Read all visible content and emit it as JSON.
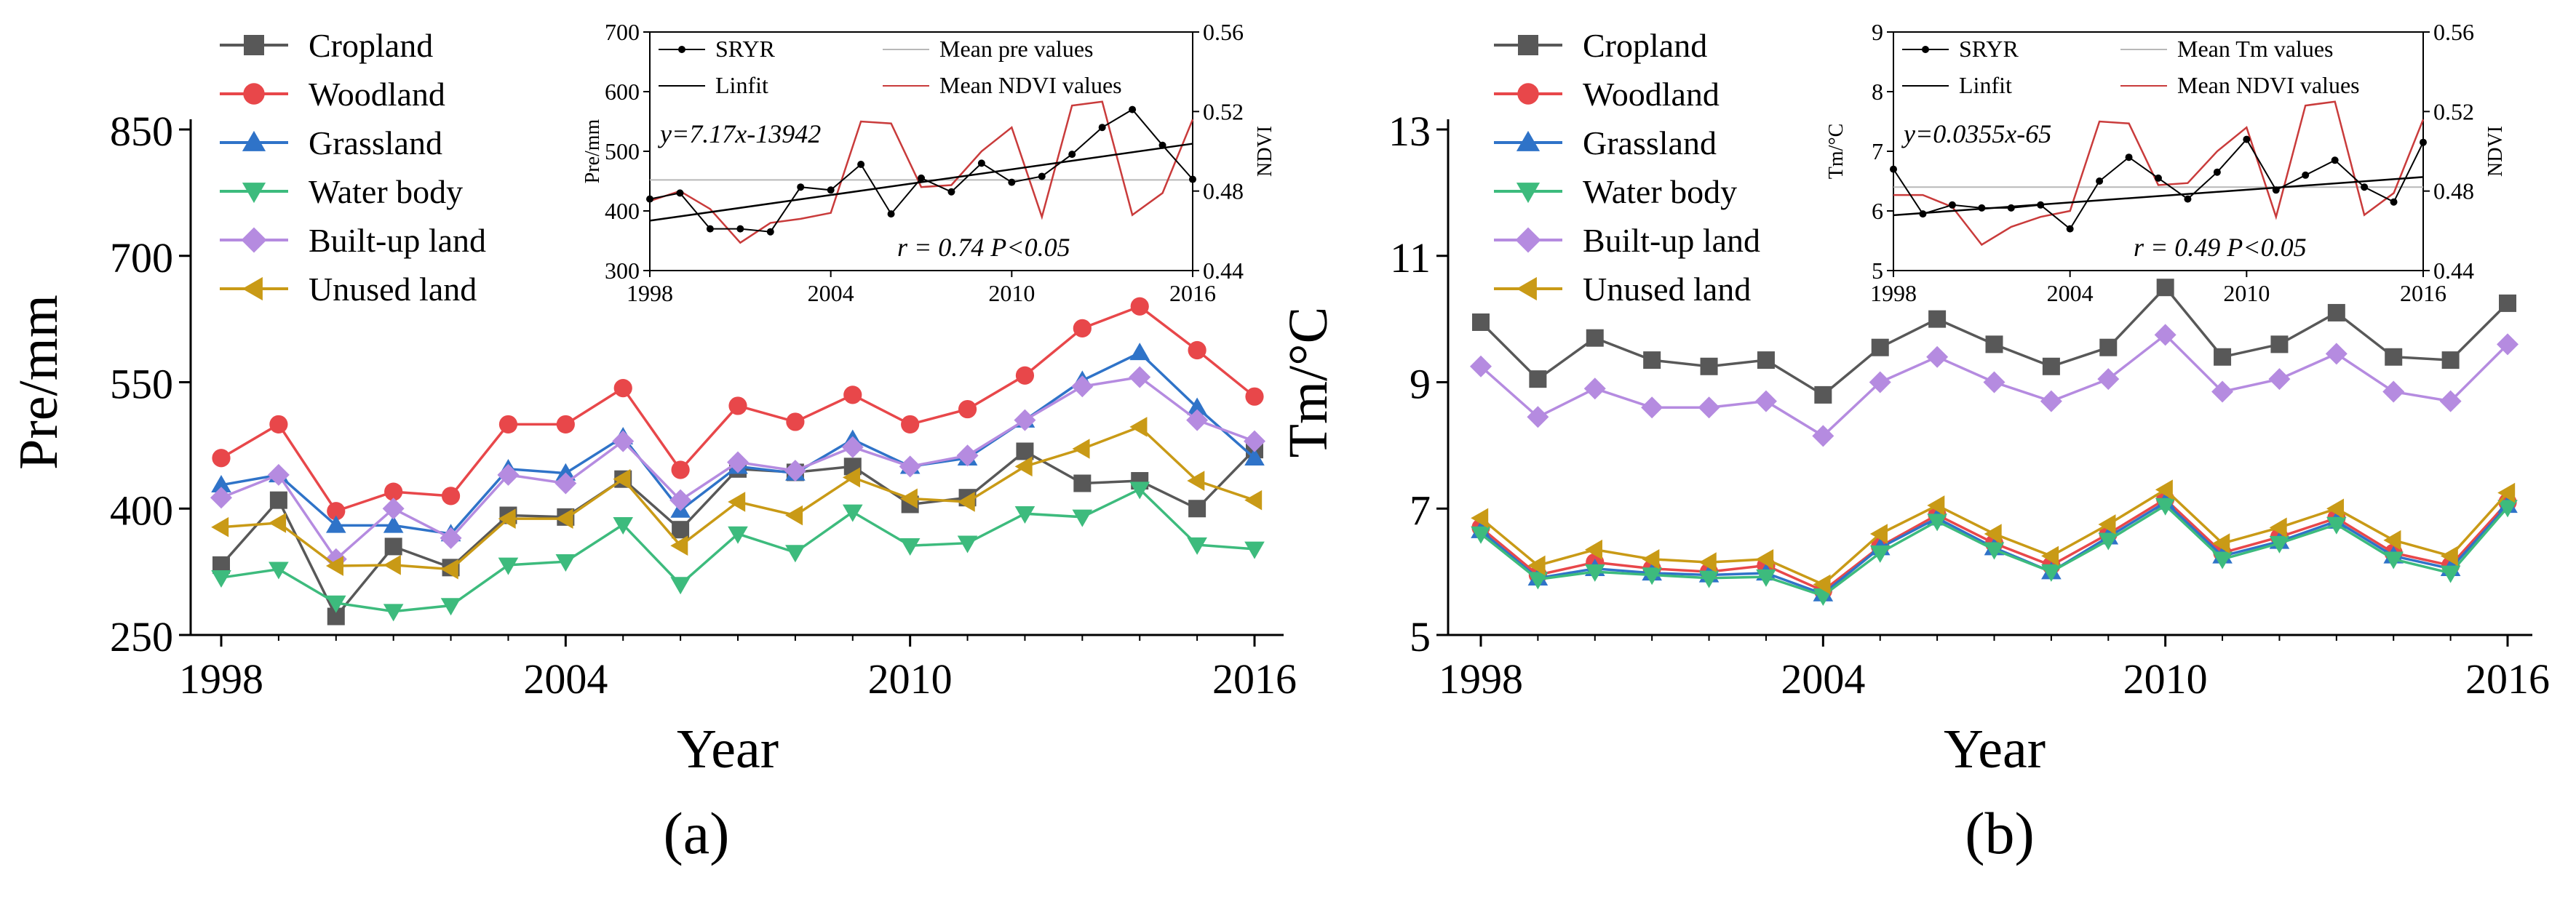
{
  "figure": {
    "panel_a_caption": "(a)",
    "panel_b_caption": "(b)"
  },
  "chart_data": [
    {
      "id": "a_main",
      "type": "line",
      "ylabel": "Pre/mm",
      "xlabel": "Year",
      "x": [
        1998,
        1999,
        2000,
        2001,
        2002,
        2003,
        2004,
        2005,
        2006,
        2007,
        2008,
        2009,
        2010,
        2011,
        2012,
        2013,
        2014,
        2015,
        2016
      ],
      "xticks": [
        1998,
        2004,
        2010,
        2016
      ],
      "ylim": [
        250,
        850
      ],
      "yticks": [
        250,
        400,
        550,
        700,
        850
      ],
      "series": [
        {
          "name": "Cropland",
          "color": "#585858",
          "marker": "square",
          "values": [
            333,
            410,
            272,
            355,
            330,
            392,
            390,
            435,
            375,
            447,
            443,
            450,
            405,
            413,
            468,
            430,
            433,
            400,
            470
          ]
        },
        {
          "name": "Woodland",
          "color": "#e8474a",
          "marker": "circle",
          "values": [
            460,
            500,
            397,
            420,
            415,
            500,
            500,
            543,
            446,
            522,
            503,
            535,
            500,
            518,
            558,
            614,
            640,
            588,
            533
          ]
        },
        {
          "name": "Grassland",
          "color": "#2f73c8",
          "marker": "triangle",
          "values": [
            428,
            440,
            380,
            380,
            370,
            447,
            442,
            485,
            398,
            450,
            442,
            482,
            450,
            460,
            505,
            552,
            585,
            520,
            460
          ]
        },
        {
          "name": "Water body",
          "color": "#3dbb7d",
          "marker": "triangle-down",
          "values": [
            318,
            328,
            288,
            278,
            285,
            333,
            337,
            381,
            310,
            370,
            348,
            396,
            356,
            359,
            394,
            390,
            423,
            357,
            352
          ]
        },
        {
          "name": "Built-up land",
          "color": "#b58be0",
          "marker": "diamond",
          "values": [
            413,
            440,
            340,
            400,
            365,
            440,
            430,
            480,
            410,
            455,
            445,
            473,
            450,
            463,
            505,
            545,
            556,
            505,
            480
          ]
        },
        {
          "name": "Unused land",
          "color": "#c99a16",
          "marker": "triangle-left",
          "values": [
            378,
            383,
            332,
            333,
            328,
            388,
            388,
            435,
            356,
            408,
            392,
            437,
            412,
            408,
            450,
            471,
            497,
            433,
            410
          ]
        }
      ]
    },
    {
      "id": "a_inset",
      "type": "line",
      "ylabel": "Pre/mm",
      "y2label": "NDVI",
      "x": [
        1998,
        1999,
        2000,
        2001,
        2002,
        2003,
        2004,
        2005,
        2006,
        2007,
        2008,
        2009,
        2010,
        2011,
        2012,
        2013,
        2014,
        2015,
        2016
      ],
      "xticks": [
        1998,
        2004,
        2010,
        2016
      ],
      "ylim": [
        300,
        700
      ],
      "yticks": [
        300,
        400,
        500,
        600,
        700
      ],
      "y2lim": [
        0.44,
        0.56
      ],
      "y2ticks": [
        "0.44",
        "0.48",
        "0.52",
        "0.56"
      ],
      "mean_value": 452,
      "linfit": {
        "slope": 7.17,
        "intercept": -13942
      },
      "equation_label": "y=7.17x-13942",
      "stats_label": "r = 0.74  P<0.05",
      "legend": [
        "SRYR",
        "Linfit",
        "Mean pre values",
        "Mean NDVI values"
      ],
      "series": [
        {
          "name": "SRYR",
          "color": "#000000",
          "axis": "left",
          "values": [
            420,
            430,
            370,
            370,
            365,
            440,
            435,
            478,
            395,
            455,
            432,
            480,
            448,
            458,
            495,
            540,
            570,
            510,
            453
          ]
        },
        {
          "name": "Mean NDVI values",
          "color": "#c93b3b",
          "axis": "right",
          "values": [
            0.475,
            0.48,
            0.471,
            0.454,
            0.464,
            0.466,
            0.469,
            0.515,
            0.514,
            0.482,
            0.483,
            0.5,
            0.512,
            0.467,
            0.523,
            0.525,
            0.468,
            0.479,
            0.516
          ]
        }
      ]
    },
    {
      "id": "b_main",
      "type": "line",
      "ylabel": "Tm/°C",
      "xlabel": "Year",
      "x": [
        1998,
        1999,
        2000,
        2001,
        2002,
        2003,
        2004,
        2005,
        2006,
        2007,
        2008,
        2009,
        2010,
        2011,
        2012,
        2013,
        2014,
        2015,
        2016
      ],
      "xticks": [
        1998,
        2004,
        2010,
        2016
      ],
      "ylim": [
        5,
        13
      ],
      "yticks": [
        5,
        7,
        9,
        11,
        13
      ],
      "series": [
        {
          "name": "Cropland",
          "color": "#585858",
          "marker": "square",
          "values": [
            9.95,
            9.05,
            9.7,
            9.35,
            9.25,
            9.35,
            8.8,
            9.55,
            10.0,
            9.6,
            9.25,
            9.55,
            10.5,
            9.4,
            9.6,
            10.1,
            9.4,
            9.35,
            10.25
          ]
        },
        {
          "name": "Woodland",
          "color": "#e8474a",
          "marker": "circle",
          "values": [
            6.7,
            5.95,
            6.15,
            6.05,
            6.0,
            6.1,
            5.7,
            6.4,
            6.9,
            6.45,
            6.1,
            6.6,
            7.15,
            6.3,
            6.55,
            6.85,
            6.3,
            6.1,
            7.1
          ]
        },
        {
          "name": "Grassland",
          "color": "#2f73c8",
          "marker": "triangle",
          "values": [
            6.65,
            5.9,
            6.05,
            5.98,
            5.95,
            5.98,
            5.65,
            6.38,
            6.85,
            6.38,
            6.0,
            6.55,
            7.1,
            6.25,
            6.48,
            6.8,
            6.25,
            6.05,
            7.05
          ]
        },
        {
          "name": "Water body",
          "color": "#3dbb7d",
          "marker": "triangle-down",
          "values": [
            6.6,
            5.88,
            6.0,
            5.95,
            5.9,
            5.92,
            5.62,
            6.3,
            6.8,
            6.35,
            6.0,
            6.5,
            7.05,
            6.2,
            6.45,
            6.75,
            6.2,
            5.98,
            7.02
          ]
        },
        {
          "name": "Built-up land",
          "color": "#b58be0",
          "marker": "diamond",
          "values": [
            9.25,
            8.45,
            8.9,
            8.6,
            8.6,
            8.7,
            8.15,
            9.0,
            9.4,
            9.0,
            8.7,
            9.05,
            9.75,
            8.85,
            9.05,
            9.45,
            8.85,
            8.7,
            9.6
          ]
        },
        {
          "name": "Unused land",
          "color": "#c99a16",
          "marker": "triangle-left",
          "values": [
            6.85,
            6.1,
            6.35,
            6.2,
            6.15,
            6.2,
            5.8,
            6.6,
            7.05,
            6.6,
            6.25,
            6.75,
            7.3,
            6.45,
            6.7,
            7.0,
            6.5,
            6.25,
            7.25
          ]
        }
      ]
    },
    {
      "id": "b_inset",
      "type": "line",
      "ylabel": "Tm/°C",
      "y2label": "NDVI",
      "x": [
        1998,
        1999,
        2000,
        2001,
        2002,
        2003,
        2004,
        2005,
        2006,
        2007,
        2008,
        2009,
        2010,
        2011,
        2012,
        2013,
        2014,
        2015,
        2016
      ],
      "xticks": [
        1998,
        2004,
        2010,
        2016
      ],
      "ylim": [
        5,
        9
      ],
      "yticks": [
        5,
        6,
        7,
        8,
        9
      ],
      "y2lim": [
        0.44,
        0.56
      ],
      "y2ticks": [
        "0.44",
        "0.48",
        "0.52",
        "0.56"
      ],
      "mean_value": 6.4,
      "linfit": {
        "slope": 0.0355,
        "intercept": -65
      },
      "equation_label": "y=0.0355x-65",
      "stats_label": "r = 0.49  P<0.05",
      "legend": [
        "SRYR",
        "Linfit",
        "Mean Tm values",
        "Mean NDVI values"
      ],
      "series": [
        {
          "name": "SRYR",
          "color": "#000000",
          "axis": "left",
          "values": [
            6.7,
            5.95,
            6.1,
            6.05,
            6.05,
            6.1,
            5.7,
            6.5,
            6.9,
            6.55,
            6.2,
            6.65,
            7.2,
            6.35,
            6.6,
            6.85,
            6.4,
            6.15,
            7.15
          ]
        },
        {
          "name": "Mean NDVI values",
          "color": "#c93b3b",
          "axis": "right",
          "values": [
            0.478,
            0.478,
            0.472,
            0.453,
            0.462,
            0.467,
            0.47,
            0.515,
            0.514,
            0.483,
            0.484,
            0.5,
            0.512,
            0.467,
            0.523,
            0.525,
            0.468,
            0.479,
            0.516
          ]
        }
      ]
    }
  ]
}
